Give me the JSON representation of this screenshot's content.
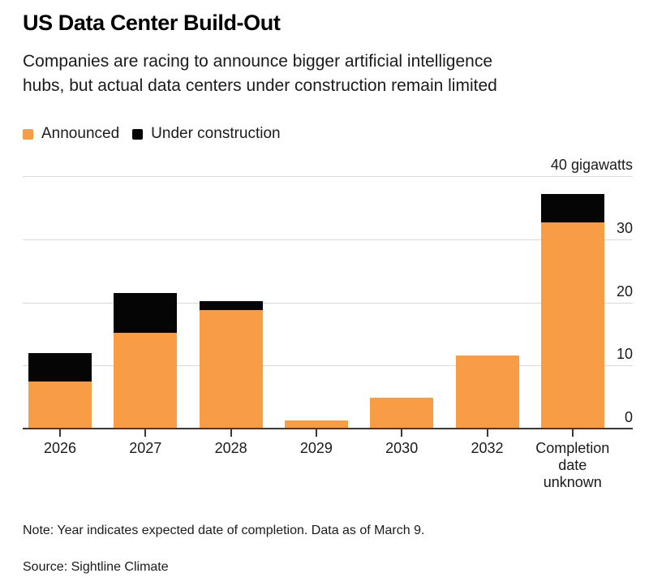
{
  "header": {
    "title": "US Data Center Build-Out",
    "subtitle": "Companies are racing to announce bigger artificial intelligence\nhubs, but actual data centers under construction remain limited"
  },
  "legend": {
    "items": [
      {
        "label": "Announced",
        "color": "#F99C46"
      },
      {
        "label": "Under construction",
        "color": "#050505"
      }
    ]
  },
  "chart_data": {
    "type": "bar",
    "stacked": true,
    "orientation": "vertical",
    "title": "US Data Center Build-Out",
    "xlabel": "",
    "ylabel": "gigawatts",
    "categories": [
      "2026",
      "2027",
      "2028",
      "2029",
      "2030",
      "2032",
      "Completion date unknown"
    ],
    "series": [
      {
        "name": "Announced",
        "color": "#F99C46",
        "values": [
          7.3,
          15.1,
          18.7,
          1.2,
          4.8,
          11.4,
          32.6
        ]
      },
      {
        "name": "Under construction",
        "color": "#050505",
        "values": [
          4.5,
          6.3,
          1.4,
          0,
          0,
          0,
          4.4
        ]
      }
    ],
    "y_axis": {
      "ticks": [
        0,
        10,
        20,
        30,
        40
      ],
      "ylim": [
        0,
        40
      ],
      "max_label": "40 gigawatts",
      "side": "right"
    },
    "grid": "horizontal",
    "legend_position": "top-left",
    "colors": {
      "gridline": "#D9D9D9",
      "axis": "#37393C",
      "text": "#1B1B1B"
    }
  },
  "footer": {
    "note": "Note: Year indicates expected date of completion. Data as of March 9.",
    "source": "Source: Sightline Climate"
  }
}
